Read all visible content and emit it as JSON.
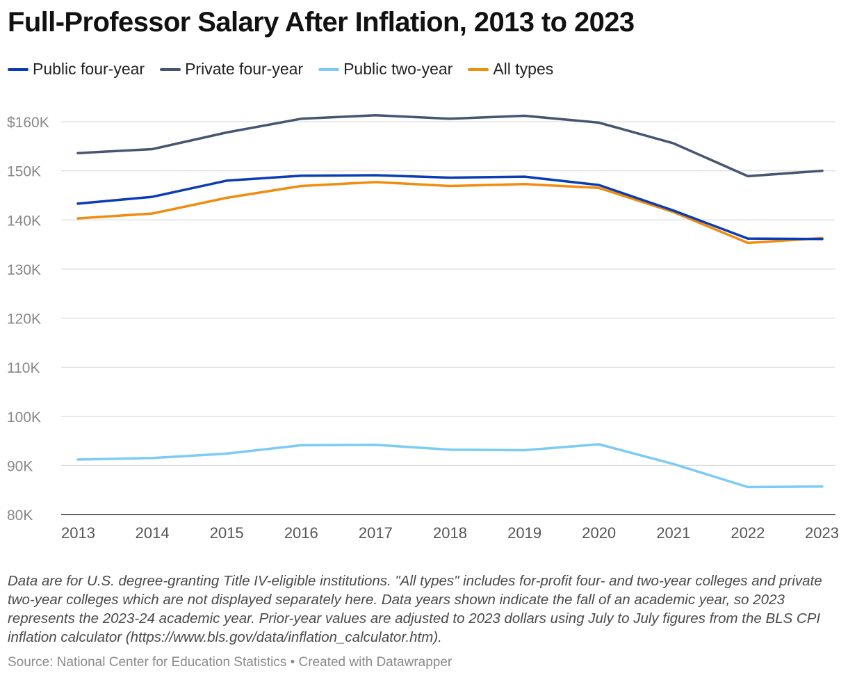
{
  "chart_data": {
    "type": "line",
    "title": "Full-Professor Salary After Inflation, 2013 to 2023",
    "xlabel": "",
    "ylabel": "",
    "x": [
      "2013",
      "2014",
      "2015",
      "2016",
      "2017",
      "2018",
      "2019",
      "2020",
      "2021",
      "2022",
      "2023"
    ],
    "ylim": [
      80000,
      160000
    ],
    "yticks": [
      80000,
      90000,
      100000,
      110000,
      120000,
      130000,
      140000,
      150000,
      160000
    ],
    "ytick_labels": [
      "80K",
      "90K",
      "100K",
      "110K",
      "120K",
      "130K",
      "140K",
      "150K",
      "$160K"
    ],
    "grid": true,
    "legend_position": "top-left",
    "series": [
      {
        "name": "Public four-year",
        "color": "#0a3cb5",
        "values": [
          143300,
          144700,
          148000,
          149000,
          149100,
          148600,
          148800,
          147100,
          141900,
          136200,
          136100
        ]
      },
      {
        "name": "Private four-year",
        "color": "#445671",
        "values": [
          153600,
          154400,
          157800,
          160600,
          161300,
          160600,
          161200,
          159800,
          155600,
          148900,
          150000
        ]
      },
      {
        "name": "Public two-year",
        "color": "#7ccbf7",
        "values": [
          91200,
          91500,
          92400,
          94100,
          94200,
          93200,
          93100,
          94300,
          90300,
          85600,
          85700
        ]
      },
      {
        "name": "All types",
        "color": "#f18c0e",
        "values": [
          140300,
          141300,
          144500,
          146900,
          147700,
          146900,
          147300,
          146500,
          141600,
          135300,
          136300
        ]
      }
    ]
  },
  "notes": "Data are for U.S. degree-granting Title IV-eligible institutions. \"All types\" includes for-profit four- and two-year colleges and private two-year colleges which are not displayed separately here. Data years shown indicate the fall of an academic year, so 2023 represents the 2023-24 academic year. Prior-year values are adjusted to 2023 dollars using July to July figures from the BLS CPI inflation calculator (https://www.bls.gov/data/inflation_calculator.htm).",
  "source": "Source: National Center for Education Statistics • Created with Datawrapper"
}
